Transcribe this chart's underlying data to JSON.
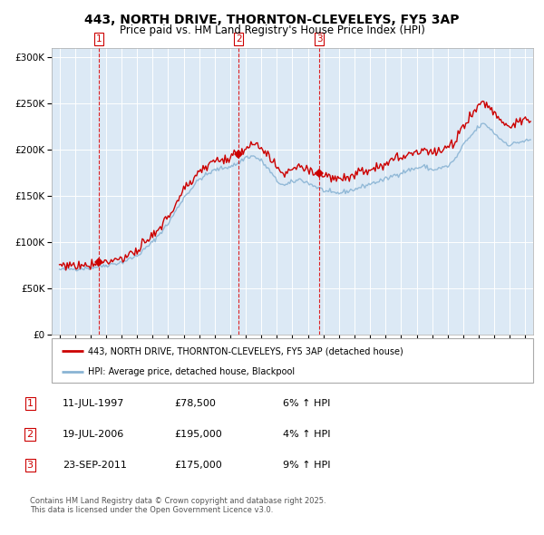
{
  "title": "443, NORTH DRIVE, THORNTON-CLEVELEYS, FY5 3AP",
  "subtitle": "Price paid vs. HM Land Registry's House Price Index (HPI)",
  "ylim": [
    0,
    310000
  ],
  "yticks": [
    0,
    50000,
    100000,
    150000,
    200000,
    250000,
    300000
  ],
  "ytick_labels": [
    "£0",
    "£50K",
    "£100K",
    "£150K",
    "£200K",
    "£250K",
    "£300K"
  ],
  "hpi_color": "#8ab4d4",
  "price_color": "#cc0000",
  "bg_color": "#dce9f5",
  "grid_color": "#ffffff",
  "sale1_date": 1997.53,
  "sale1_price": 78500,
  "sale2_date": 2006.54,
  "sale2_price": 195000,
  "sale3_date": 2011.73,
  "sale3_price": 175000,
  "legend_address": "443, NORTH DRIVE, THORNTON-CLEVELEYS, FY5 3AP (detached house)",
  "legend_hpi": "HPI: Average price, detached house, Blackpool",
  "table_rows": [
    [
      "1",
      "11-JUL-1997",
      "£78,500",
      "6% ↑ HPI"
    ],
    [
      "2",
      "19-JUL-2006",
      "£195,000",
      "4% ↑ HPI"
    ],
    [
      "3",
      "23-SEP-2011",
      "£175,000",
      "9% ↑ HPI"
    ]
  ],
  "footer": "Contains HM Land Registry data © Crown copyright and database right 2025.\nThis data is licensed under the Open Government Licence v3.0.",
  "title_fontsize": 10,
  "subtitle_fontsize": 8.5,
  "xstart": 1994.5,
  "xend": 2025.5
}
